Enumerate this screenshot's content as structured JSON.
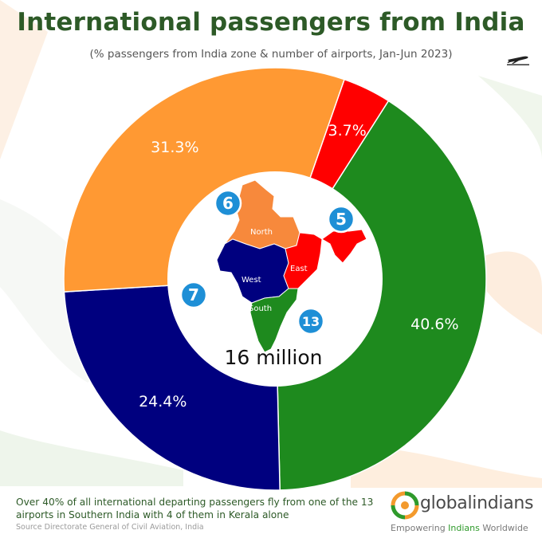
{
  "colors": {
    "title": "#2d5a27",
    "south": "#1e8a1e",
    "west": "#00007f",
    "north": "#ff9933",
    "east": "#ff0000",
    "badge": "#1e8fd6"
  },
  "chart_data": {
    "type": "pie",
    "title": "International passengers from India",
    "subtitle": "(% passengers from India zone & number of airports, Jan-Jun 2023)",
    "center_label": "16 million",
    "slices": [
      {
        "name": "South",
        "value": 40.6,
        "label": "40.6%",
        "airports": "13",
        "color": "#1e8a1e"
      },
      {
        "name": "West",
        "value": 24.4,
        "label": "24.4%",
        "airports": "7",
        "color": "#00007f"
      },
      {
        "name": "North",
        "value": 31.3,
        "label": "31.3%",
        "airports": "6",
        "color": "#ff9933"
      },
      {
        "name": "East",
        "value": 3.7,
        "label": "3.7%",
        "airports": "5",
        "color": "#ff0000"
      }
    ]
  },
  "map_labels": {
    "north": "North",
    "west": "West",
    "east": "East",
    "south": "South"
  },
  "footnote": "Over 40% of all international departing passengers fly from one of the 13 airports in Southern India with 4 of them in Kerala alone",
  "source": "Source Directorate General of Civil Aviation, India",
  "logo": {
    "name": "globalindians",
    "tagline_prefix": "Empowering ",
    "tagline_highlight": "Indians",
    "tagline_suffix": " Worldwide"
  },
  "icons": {
    "plane": "airplane-departure-icon",
    "logo": "globalindians-logo-icon"
  }
}
